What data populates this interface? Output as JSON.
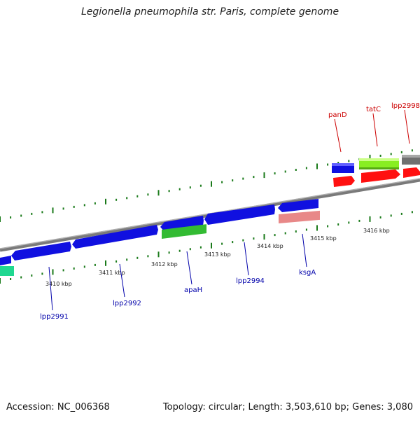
{
  "title": "Legionella pneumophila str. Paris, complete genome",
  "footer": {
    "accession": "Accession: NC_006368",
    "info": "Topology: circular; Length: 3,503,610 bp; Genes: 3,080"
  },
  "colors": {
    "forward_label": "#cc0000",
    "reverse_label": "#0000aa",
    "backbone": "#808080",
    "tick": "#1a7a1a"
  },
  "ruler_labels": [
    "3410 kbp",
    "3411 kbp",
    "3412 kbp",
    "3413 kbp",
    "3414 kbp",
    "3415 kbp",
    "3416 kbp"
  ],
  "gene_labels": {
    "forward": [
      "panD",
      "tatC",
      "lpp2998"
    ],
    "reverse": [
      "lpp2991",
      "lpp2992",
      "apaH",
      "lpp2994",
      "ksgA"
    ]
  }
}
